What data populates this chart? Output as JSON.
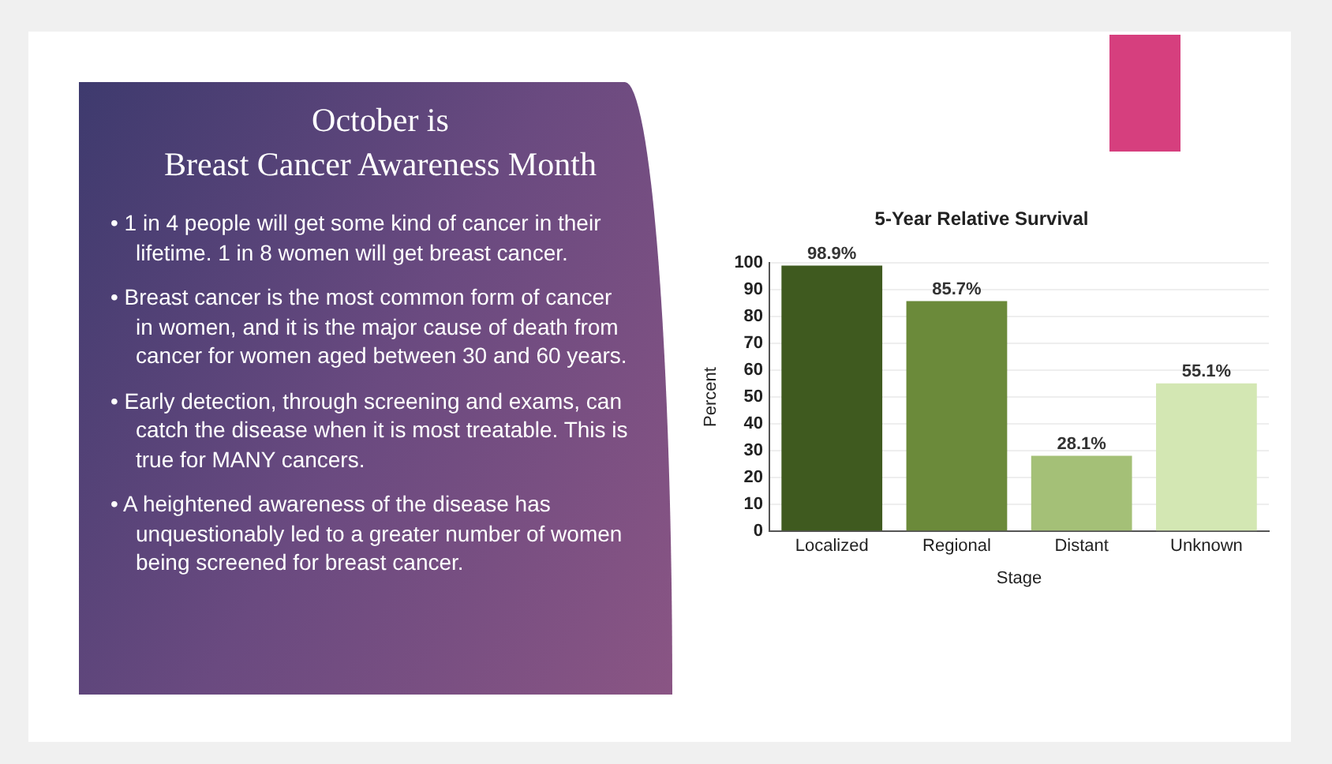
{
  "chart_data": {
    "type": "bar",
    "title": "5-Year Relative Survival",
    "xlabel": "Stage",
    "ylabel": "Percent",
    "categories": [
      "Localized",
      "Regional",
      "Distant",
      "Unknown"
    ],
    "values": [
      98.9,
      85.7,
      28.1,
      55.1
    ],
    "colors": [
      "#3f5a1f",
      "#6b8a3a",
      "#a4c077",
      "#d3e7b3"
    ],
    "value_labels": [
      "98.9%",
      "85.7%",
      "28.1%",
      "55.1%"
    ],
    "ylim": [
      0,
      100
    ],
    "yticks": [
      0,
      10,
      20,
      30,
      40,
      50,
      60,
      70,
      80,
      90,
      100
    ],
    "grid": "y",
    "legend": false,
    "annotations": [
      "October is\nBreast Cancer Awareness Month",
      "• 1 in 4 people will get some kind of cancer in their lifetime. 1 in 8 women will get breast cancer.",
      "• Breast cancer is the most common form of cancer in women, and it is the major cause of death from cancer for women aged between 30 and 60 years.",
      "• Early detection, through screening and exams, can catch the disease when it is most treatable.  This is true for MANY cancers.",
      "• A heightened awareness of the disease has unquestionably led to a greater number of women being screened for breast cancer."
    ]
  }
}
